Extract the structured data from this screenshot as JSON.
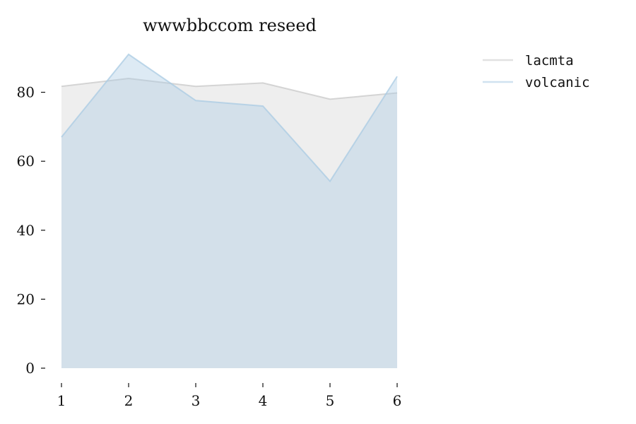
{
  "chart_data": {
    "type": "area",
    "title": "wwwbbccom reseed",
    "xlabel": "",
    "ylabel": "",
    "x": [
      1,
      2,
      3,
      4,
      5,
      6
    ],
    "x_ticks": [
      "1",
      "2",
      "3",
      "4",
      "5",
      "6"
    ],
    "y_ticks": [
      "0",
      "20",
      "40",
      "60",
      "80"
    ],
    "xlim": [
      1,
      6
    ],
    "ylim": [
      0,
      92
    ],
    "grid": false,
    "legend_position": "outside-top-right",
    "series": [
      {
        "name": "lacmta",
        "values": [
          81.7,
          84.0,
          81.7,
          82.7,
          78.0,
          79.8
        ],
        "color": "#c8c8c8"
      },
      {
        "name": "volcanic",
        "values": [
          67.0,
          91.0,
          77.6,
          76.0,
          54.2,
          84.6
        ],
        "color": "#a9cbe3"
      }
    ]
  }
}
